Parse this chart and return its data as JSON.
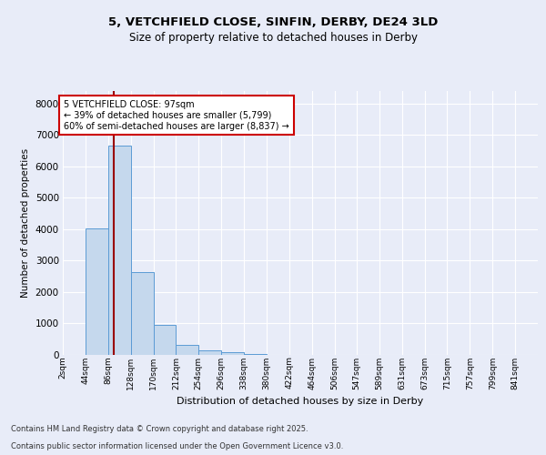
{
  "title1": "5, VETCHFIELD CLOSE, SINFIN, DERBY, DE24 3LD",
  "title2": "Size of property relative to detached houses in Derby",
  "xlabel": "Distribution of detached houses by size in Derby",
  "ylabel": "Number of detached properties",
  "bar_color": "#c5d8ed",
  "bar_edge_color": "#5b9bd5",
  "bin_labels": [
    "2sqm",
    "44sqm",
    "86sqm",
    "128sqm",
    "170sqm",
    "212sqm",
    "254sqm",
    "296sqm",
    "338sqm",
    "380sqm",
    "422sqm",
    "464sqm",
    "506sqm",
    "547sqm",
    "589sqm",
    "631sqm",
    "673sqm",
    "715sqm",
    "757sqm",
    "799sqm",
    "841sqm"
  ],
  "bin_edges": [
    2,
    44,
    86,
    128,
    170,
    212,
    254,
    296,
    338,
    380,
    422,
    464,
    506,
    547,
    589,
    631,
    673,
    715,
    757,
    799,
    841
  ],
  "bar_heights": [
    0,
    4020,
    6650,
    2650,
    950,
    320,
    155,
    75,
    28,
    12,
    6,
    3,
    1,
    1,
    0,
    0,
    0,
    0,
    0,
    0,
    0
  ],
  "ylim": [
    0,
    8400
  ],
  "yticks": [
    0,
    1000,
    2000,
    3000,
    4000,
    5000,
    6000,
    7000,
    8000
  ],
  "property_size": 97,
  "vline_color": "#990000",
  "annotation_text": "5 VETCHFIELD CLOSE: 97sqm\n← 39% of detached houses are smaller (5,799)\n60% of semi-detached houses are larger (8,837) →",
  "annotation_box_color": "#ffffff",
  "annotation_box_edge_color": "#cc0000",
  "footer1": "Contains HM Land Registry data © Crown copyright and database right 2025.",
  "footer2": "Contains public sector information licensed under the Open Government Licence v3.0.",
  "background_color": "#e8ecf8",
  "grid_color": "#ffffff",
  "plot_bg_color": "#e8ecf8"
}
